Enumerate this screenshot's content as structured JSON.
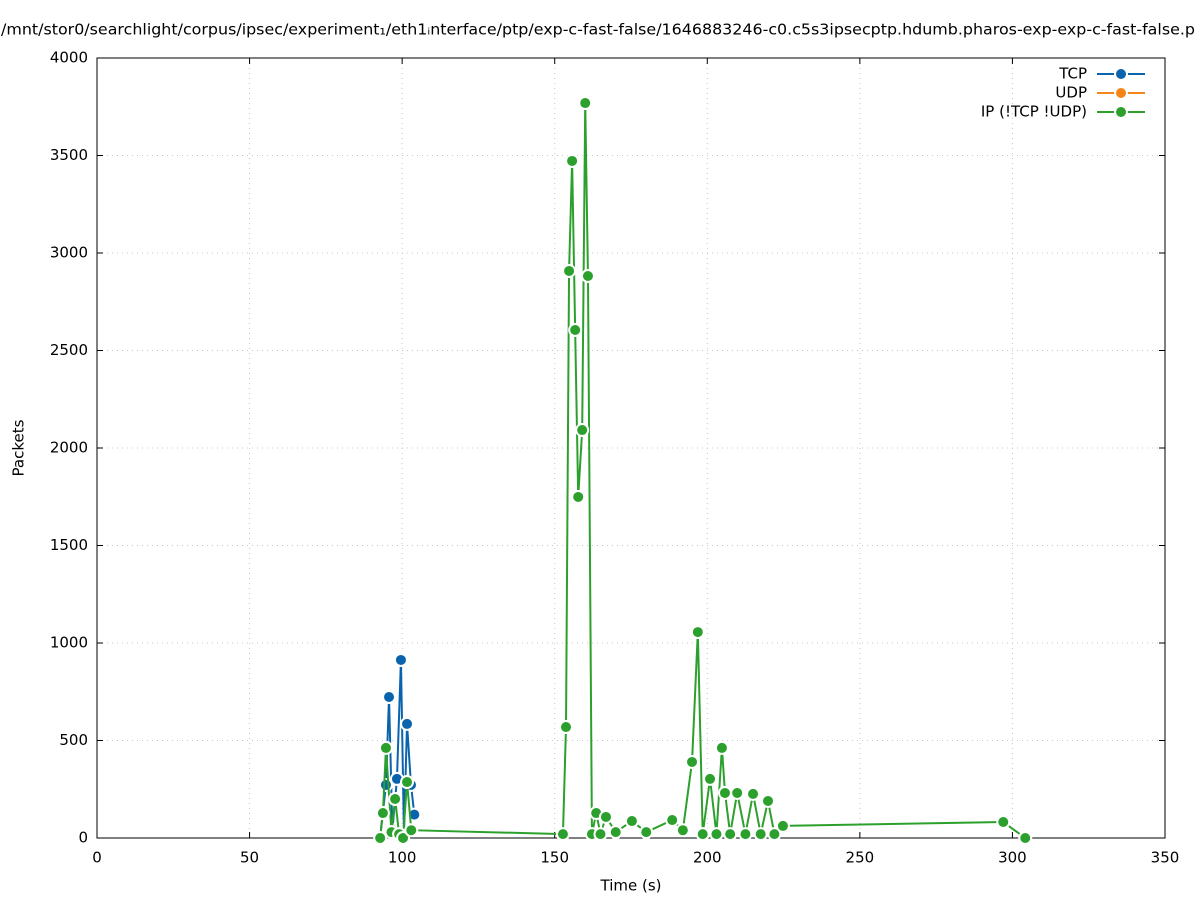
{
  "chart_data": {
    "type": "line",
    "title": "/mnt/stor0/searchlight/corpus/ipsec/experiment₁/eth1ᵢnterface/ptp/exp-c-fast-false/1646883246-c0.c5s3ipsecptp.hdumb.pharos-exp-exp-c-fast-false.p",
    "x_label": "Time (s)",
    "y_label": "Packets",
    "xlim": [
      0,
      350
    ],
    "xticks": [
      0,
      50,
      100,
      150,
      200,
      250,
      300,
      350
    ],
    "ylim": [
      0,
      4000
    ],
    "yticks": [
      0,
      500,
      1000,
      1500,
      2000,
      2500,
      3000,
      3500,
      4000
    ],
    "grid": true,
    "legend": "upper-right",
    "series": [
      {
        "name": "TCP",
        "color": "#0a63ad",
        "x": [
          92.8,
          94.7,
          95.7,
          96.8,
          98.3,
          99.6,
          100.6,
          101.6,
          102.9,
          104
        ],
        "values": [
          10,
          272,
          723,
          40,
          303,
          913,
          20,
          585,
          272,
          120
        ]
      },
      {
        "name": "UDP",
        "color": "#f58518",
        "x": [],
        "values": []
      },
      {
        "name": "IP (!TCP  !UDP)",
        "color": "#2ca02c",
        "x": [
          92.8,
          93.7,
          94.7,
          96.5,
          97.7,
          99,
          100.3,
          101.6,
          103,
          152.7,
          153.7,
          154.7,
          155.7,
          156.7,
          157.7,
          159,
          160,
          160.9,
          162.2,
          163.6,
          165,
          166.8,
          170,
          175.3,
          180,
          188.5,
          192,
          195,
          196.9,
          198.5,
          200.9,
          203,
          204.8,
          205.8,
          207.5,
          209.8,
          212.5,
          215,
          217.5,
          219.9,
          222,
          224.8,
          297,
          304.2
        ],
        "values": [
          0,
          128,
          462,
          30,
          200,
          20,
          0,
          287,
          40,
          20,
          569,
          2908,
          3472,
          2605,
          1749,
          2092,
          3769,
          2882,
          20,
          128,
          20,
          108,
          30,
          87,
          30,
          92,
          40,
          390,
          1056,
          20,
          303,
          20,
          462,
          231,
          20,
          231,
          20,
          226,
          20,
          190,
          20,
          62,
          82,
          0
        ]
      }
    ]
  }
}
